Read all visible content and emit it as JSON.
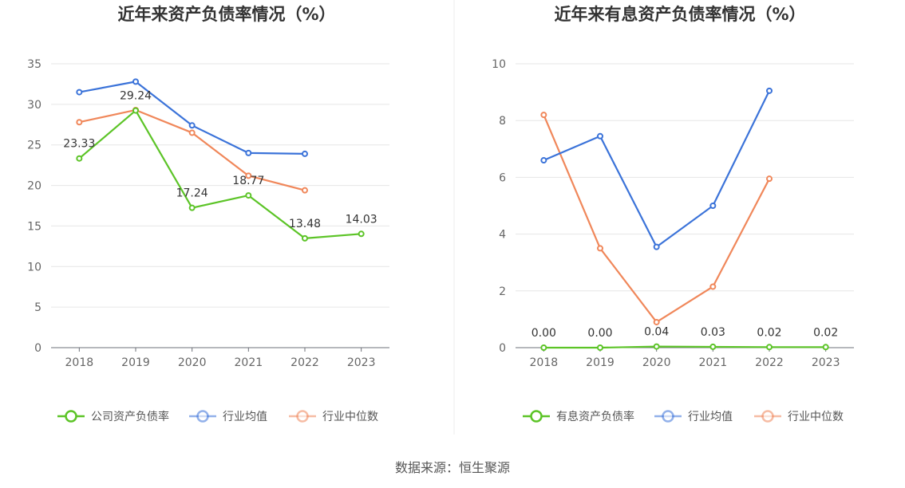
{
  "source": "数据来源：恒生聚源",
  "chart_data": [
    {
      "type": "line",
      "title": "近年来资产负债率情况（%）",
      "categories": [
        "2018",
        "2019",
        "2020",
        "2021",
        "2022",
        "2023"
      ],
      "ylim": [
        0,
        35
      ],
      "yticks": [
        0,
        5,
        10,
        15,
        20,
        25,
        30,
        35
      ],
      "grid": true,
      "legend_position": "bottom",
      "series": [
        {
          "name": "公司资产负债率",
          "color": "#5cc427",
          "values": [
            23.33,
            29.24,
            17.24,
            18.77,
            13.48,
            14.03
          ],
          "labels": [
            "23.33",
            "29.24",
            "17.24",
            "18.77",
            "13.48",
            "14.03"
          ]
        },
        {
          "name": "行业均值",
          "color": "#3b73d9",
          "values": [
            31.5,
            32.8,
            27.4,
            24.0,
            23.9,
            null
          ]
        },
        {
          "name": "行业中位数",
          "color": "#f0875a",
          "values": [
            27.8,
            29.3,
            26.5,
            21.2,
            19.4,
            null
          ]
        }
      ]
    },
    {
      "type": "line",
      "title": "近年来有息资产负债率情况（%）",
      "categories": [
        "2018",
        "2019",
        "2020",
        "2021",
        "2022",
        "2023"
      ],
      "ylim": [
        0,
        10
      ],
      "yticks": [
        0,
        2,
        4,
        6,
        8,
        10
      ],
      "grid": true,
      "legend_position": "bottom",
      "series": [
        {
          "name": "有息资产负债率",
          "color": "#5cc427",
          "values": [
            0.0,
            0.0,
            0.04,
            0.03,
            0.02,
            0.02
          ],
          "labels": [
            "0.00",
            "0.00",
            "0.04",
            "0.03",
            "0.02",
            "0.02"
          ]
        },
        {
          "name": "行业均值",
          "color": "#3b73d9",
          "values": [
            6.6,
            7.45,
            3.55,
            5.0,
            9.05,
            null
          ]
        },
        {
          "name": "行业中位数",
          "color": "#f0875a",
          "values": [
            8.2,
            3.5,
            0.9,
            2.15,
            5.95,
            null
          ]
        }
      ]
    }
  ]
}
